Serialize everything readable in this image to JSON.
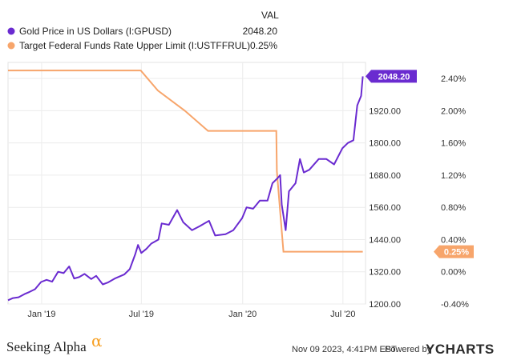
{
  "chart_data": {
    "type": "line",
    "value_column_header": "VAL",
    "series": [
      {
        "name": "Gold Price in US Dollars (I:GPUSD)",
        "display_value": "2048.20",
        "color": "#6a2bd0",
        "axis": "left",
        "points": [
          [
            "2018-11-01",
            1214
          ],
          [
            "2018-11-10",
            1222
          ],
          [
            "2018-11-20",
            1225
          ],
          [
            "2018-12-01",
            1237
          ],
          [
            "2018-12-10",
            1245
          ],
          [
            "2018-12-20",
            1255
          ],
          [
            "2018-12-31",
            1282
          ],
          [
            "2019-01-10",
            1290
          ],
          [
            "2019-01-20",
            1283
          ],
          [
            "2019-01-31",
            1320
          ],
          [
            "2019-02-10",
            1315
          ],
          [
            "2019-02-20",
            1340
          ],
          [
            "2019-03-01",
            1295
          ],
          [
            "2019-03-10",
            1300
          ],
          [
            "2019-03-20",
            1312
          ],
          [
            "2019-04-01",
            1293
          ],
          [
            "2019-04-10",
            1305
          ],
          [
            "2019-04-22",
            1273
          ],
          [
            "2019-05-01",
            1280
          ],
          [
            "2019-05-15",
            1296
          ],
          [
            "2019-05-31",
            1310
          ],
          [
            "2019-06-10",
            1330
          ],
          [
            "2019-06-20",
            1385
          ],
          [
            "2019-06-25",
            1420
          ],
          [
            "2019-07-01",
            1390
          ],
          [
            "2019-07-10",
            1405
          ],
          [
            "2019-07-19",
            1425
          ],
          [
            "2019-08-01",
            1440
          ],
          [
            "2019-08-07",
            1500
          ],
          [
            "2019-08-20",
            1495
          ],
          [
            "2019-09-04",
            1550
          ],
          [
            "2019-09-15",
            1505
          ],
          [
            "2019-10-01",
            1475
          ],
          [
            "2019-10-15",
            1490
          ],
          [
            "2019-11-01",
            1510
          ],
          [
            "2019-11-12",
            1455
          ],
          [
            "2019-12-01",
            1460
          ],
          [
            "2019-12-15",
            1475
          ],
          [
            "2019-12-31",
            1520
          ],
          [
            "2020-01-08",
            1560
          ],
          [
            "2020-01-20",
            1555
          ],
          [
            "2020-02-01",
            1585
          ],
          [
            "2020-02-15",
            1585
          ],
          [
            "2020-02-24",
            1650
          ],
          [
            "2020-03-05",
            1670
          ],
          [
            "2020-03-09",
            1680
          ],
          [
            "2020-03-12",
            1570
          ],
          [
            "2020-03-19",
            1475
          ],
          [
            "2020-03-25",
            1620
          ],
          [
            "2020-04-06",
            1650
          ],
          [
            "2020-04-14",
            1740
          ],
          [
            "2020-04-21",
            1690
          ],
          [
            "2020-05-01",
            1700
          ],
          [
            "2020-05-18",
            1740
          ],
          [
            "2020-06-01",
            1740
          ],
          [
            "2020-06-15",
            1720
          ],
          [
            "2020-06-30",
            1780
          ],
          [
            "2020-07-10",
            1800
          ],
          [
            "2020-07-20",
            1810
          ],
          [
            "2020-07-27",
            1940
          ],
          [
            "2020-08-03",
            1975
          ],
          [
            "2020-08-06",
            2048.2
          ]
        ]
      },
      {
        "name": "Target Federal Funds Rate Upper Limit (I:USTFFRUL)",
        "display_value": "0.25%",
        "color": "#f7a56b",
        "axis": "right",
        "points": [
          [
            "2018-11-01",
            2.5
          ],
          [
            "2019-06-30",
            2.5
          ],
          [
            "2019-07-31",
            2.25
          ],
          [
            "2019-09-18",
            2.0
          ],
          [
            "2019-10-30",
            1.75
          ],
          [
            "2020-03-02",
            1.75
          ],
          [
            "2020-03-03",
            1.25
          ],
          [
            "2020-03-15",
            0.25
          ],
          [
            "2020-08-06",
            0.25
          ]
        ]
      }
    ],
    "x_ticks": [
      "Jan '19",
      "Jul '19",
      "Jan '20",
      "Jul '20"
    ],
    "x_tick_dates": [
      "2019-01-01",
      "2019-07-01",
      "2020-01-01",
      "2020-07-01"
    ],
    "x_range": [
      "2018-11-01",
      "2020-08-11"
    ],
    "left_axis": {
      "ticks": [
        "1200.00",
        "1320.00",
        "1440.00",
        "1560.00",
        "1680.00",
        "1800.00",
        "1920.00"
      ],
      "tick_values": [
        1200,
        1320,
        1440,
        1560,
        1680,
        1800,
        1920
      ],
      "range": [
        1200,
        2100
      ]
    },
    "right_axis": {
      "ticks": [
        "-0.40%",
        "0.00%",
        "0.40%",
        "0.80%",
        "1.20%",
        "1.60%",
        "2.00%",
        "2.40%"
      ],
      "tick_values": [
        -0.4,
        0.0,
        0.4,
        0.8,
        1.2,
        1.6,
        2.0,
        2.4
      ],
      "range": [
        -0.4,
        2.6
      ]
    },
    "callouts": [
      {
        "series": 0,
        "text": "2048.20",
        "color": "#6a2bd0"
      },
      {
        "series": 1,
        "text": "0.25%",
        "color": "#f7a56b"
      }
    ],
    "grid": true,
    "legend_position": "top-left"
  },
  "footer": {
    "brand_left": "Seeking Alpha",
    "brand_left_mark": "α",
    "timestamp": "Nov 09 2023, 4:41PM EST.",
    "powered_by": "Powered by",
    "brand_right": "YCHARTS"
  }
}
